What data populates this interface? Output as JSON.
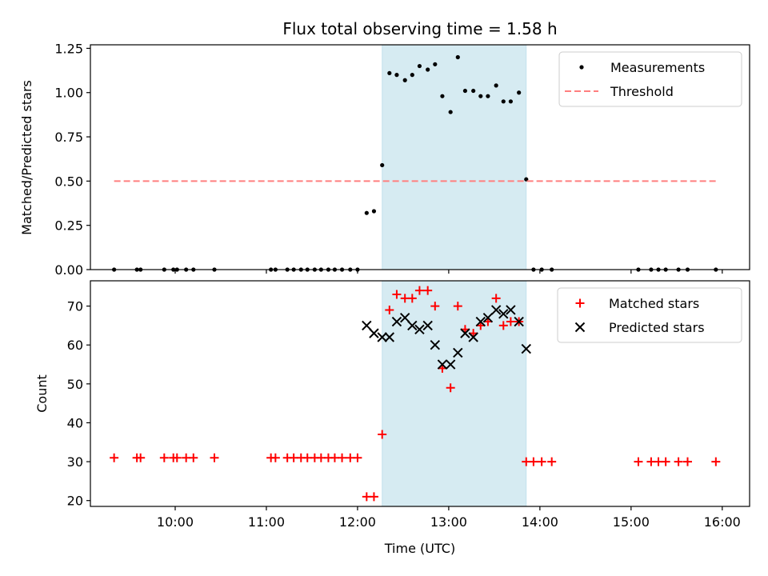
{
  "chart_data": [
    {
      "type": "scatter",
      "title": "Flux total observing time = 1.58 h",
      "xlabel": "",
      "ylabel": "Matched/Predicted stars",
      "xlim": [
        9.07,
        16.3
      ],
      "ylim": [
        0,
        1.27
      ],
      "yticks": [
        0,
        0.25,
        0.5,
        0.75,
        1.0,
        1.25
      ],
      "ytick_labels": [
        "0.00",
        "0.25",
        "0.50",
        "0.75",
        "1.00",
        "1.25"
      ],
      "grid": false,
      "legend_position": "top-right",
      "shaded_region": {
        "x": [
          12.27,
          13.85
        ],
        "color": "#add8e6"
      },
      "series": [
        {
          "name": "Measurements",
          "marker": "dot",
          "color": "#000000",
          "points": [
            [
              9.33,
              0.0
            ],
            [
              9.58,
              0.0
            ],
            [
              9.62,
              0.0
            ],
            [
              9.88,
              0.0
            ],
            [
              9.98,
              0.0
            ],
            [
              10.02,
              0.0
            ],
            [
              10.12,
              0.0
            ],
            [
              10.2,
              0.0
            ],
            [
              10.43,
              0.0
            ],
            [
              11.05,
              0.0
            ],
            [
              11.1,
              0.0
            ],
            [
              11.23,
              0.0
            ],
            [
              11.3,
              0.0
            ],
            [
              11.38,
              0.0
            ],
            [
              11.45,
              0.0
            ],
            [
              11.53,
              0.0
            ],
            [
              11.6,
              0.0
            ],
            [
              11.68,
              0.0
            ],
            [
              11.75,
              0.0
            ],
            [
              11.83,
              0.0
            ],
            [
              11.92,
              0.0
            ],
            [
              12.0,
              0.0
            ],
            [
              12.1,
              0.32
            ],
            [
              12.18,
              0.33
            ],
            [
              12.27,
              0.59
            ],
            [
              12.35,
              1.11
            ],
            [
              12.43,
              1.1
            ],
            [
              12.52,
              1.07
            ],
            [
              12.6,
              1.1
            ],
            [
              12.68,
              1.15
            ],
            [
              12.77,
              1.13
            ],
            [
              12.85,
              1.16
            ],
            [
              12.93,
              0.98
            ],
            [
              13.02,
              0.89
            ],
            [
              13.1,
              1.2
            ],
            [
              13.18,
              1.01
            ],
            [
              13.27,
              1.01
            ],
            [
              13.35,
              0.98
            ],
            [
              13.43,
              0.98
            ],
            [
              13.52,
              1.04
            ],
            [
              13.6,
              0.95
            ],
            [
              13.68,
              0.95
            ],
            [
              13.77,
              1.0
            ],
            [
              13.85,
              0.51
            ],
            [
              13.93,
              0.0
            ],
            [
              14.02,
              0.0
            ],
            [
              14.13,
              0.0
            ],
            [
              15.08,
              0.0
            ],
            [
              15.22,
              0.0
            ],
            [
              15.3,
              0.0
            ],
            [
              15.38,
              0.0
            ],
            [
              15.52,
              0.0
            ],
            [
              15.62,
              0.0
            ],
            [
              15.93,
              0.0
            ]
          ]
        },
        {
          "name": "Threshold",
          "marker": "dashed-line",
          "color": "#ff7f7f",
          "points": [
            [
              9.33,
              0.5
            ],
            [
              15.93,
              0.5
            ]
          ]
        }
      ]
    },
    {
      "type": "scatter",
      "title": "",
      "xlabel": "Time (UTC)",
      "ylabel": "Count",
      "xlim": [
        9.07,
        16.3
      ],
      "ylim": [
        18.5,
        76.5
      ],
      "yticks": [
        20,
        30,
        40,
        50,
        60,
        70
      ],
      "xticks": [
        10,
        11,
        12,
        13,
        14,
        15,
        16
      ],
      "xtick_labels": [
        "10:00",
        "11:00",
        "12:00",
        "13:00",
        "14:00",
        "15:00",
        "16:00"
      ],
      "grid": false,
      "legend_position": "top-right",
      "shaded_region": {
        "x": [
          12.27,
          13.85
        ],
        "color": "#add8e6"
      },
      "series": [
        {
          "name": "Matched stars",
          "marker": "plus",
          "color": "#ff0000",
          "points": [
            [
              9.33,
              31
            ],
            [
              9.58,
              31
            ],
            [
              9.62,
              31
            ],
            [
              9.88,
              31
            ],
            [
              9.98,
              31
            ],
            [
              10.02,
              31
            ],
            [
              10.12,
              31
            ],
            [
              10.2,
              31
            ],
            [
              10.43,
              31
            ],
            [
              11.05,
              31
            ],
            [
              11.1,
              31
            ],
            [
              11.23,
              31
            ],
            [
              11.3,
              31
            ],
            [
              11.38,
              31
            ],
            [
              11.45,
              31
            ],
            [
              11.53,
              31
            ],
            [
              11.6,
              31
            ],
            [
              11.68,
              31
            ],
            [
              11.75,
              31
            ],
            [
              11.83,
              31
            ],
            [
              11.92,
              31
            ],
            [
              12.0,
              31
            ],
            [
              12.1,
              21
            ],
            [
              12.18,
              21
            ],
            [
              12.27,
              37
            ],
            [
              12.35,
              69
            ],
            [
              12.43,
              73
            ],
            [
              12.52,
              72
            ],
            [
              12.6,
              72
            ],
            [
              12.68,
              74
            ],
            [
              12.77,
              74
            ],
            [
              12.85,
              70
            ],
            [
              12.93,
              54
            ],
            [
              13.02,
              49
            ],
            [
              13.1,
              70
            ],
            [
              13.18,
              64
            ],
            [
              13.27,
              63
            ],
            [
              13.35,
              65
            ],
            [
              13.43,
              66
            ],
            [
              13.52,
              72
            ],
            [
              13.6,
              65
            ],
            [
              13.68,
              66
            ],
            [
              13.77,
              66
            ],
            [
              13.85,
              30
            ],
            [
              13.93,
              30
            ],
            [
              14.02,
              30
            ],
            [
              14.13,
              30
            ],
            [
              15.08,
              30
            ],
            [
              15.22,
              30
            ],
            [
              15.3,
              30
            ],
            [
              15.38,
              30
            ],
            [
              15.52,
              30
            ],
            [
              15.62,
              30
            ],
            [
              15.93,
              30
            ]
          ]
        },
        {
          "name": "Predicted stars",
          "marker": "x",
          "color": "#000000",
          "points": [
            [
              12.1,
              65
            ],
            [
              12.18,
              63
            ],
            [
              12.27,
              62
            ],
            [
              12.35,
              62
            ],
            [
              12.43,
              66
            ],
            [
              12.52,
              67
            ],
            [
              12.6,
              65
            ],
            [
              12.68,
              64
            ],
            [
              12.77,
              65
            ],
            [
              12.85,
              60
            ],
            [
              12.93,
              55
            ],
            [
              13.02,
              55
            ],
            [
              13.1,
              58
            ],
            [
              13.18,
              63
            ],
            [
              13.27,
              62
            ],
            [
              13.35,
              66
            ],
            [
              13.43,
              67
            ],
            [
              13.52,
              69
            ],
            [
              13.6,
              68
            ],
            [
              13.68,
              69
            ],
            [
              13.77,
              66
            ],
            [
              13.85,
              59
            ]
          ]
        }
      ]
    }
  ]
}
